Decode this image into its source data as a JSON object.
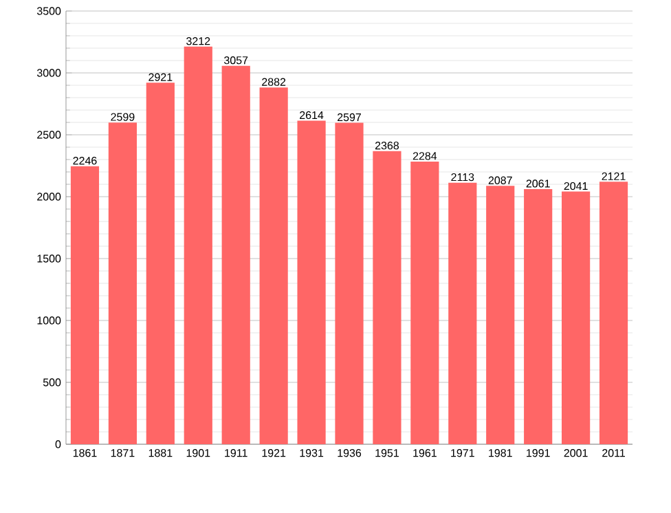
{
  "chart_data": {
    "type": "bar",
    "categories": [
      "1861",
      "1871",
      "1881",
      "1901",
      "1911",
      "1921",
      "1931",
      "1936",
      "1951",
      "1961",
      "1971",
      "1981",
      "1991",
      "2001",
      "2011"
    ],
    "values": [
      2246,
      2599,
      2921,
      3212,
      3057,
      2882,
      2614,
      2597,
      2368,
      2284,
      2113,
      2087,
      2061,
      2041,
      2121
    ],
    "color": "#ff6666",
    "ylim": [
      0,
      3500
    ],
    "yticks": [
      0,
      500,
      1000,
      1500,
      2000,
      2500,
      3000,
      3500
    ],
    "grid": "y",
    "data_labels": true
  }
}
